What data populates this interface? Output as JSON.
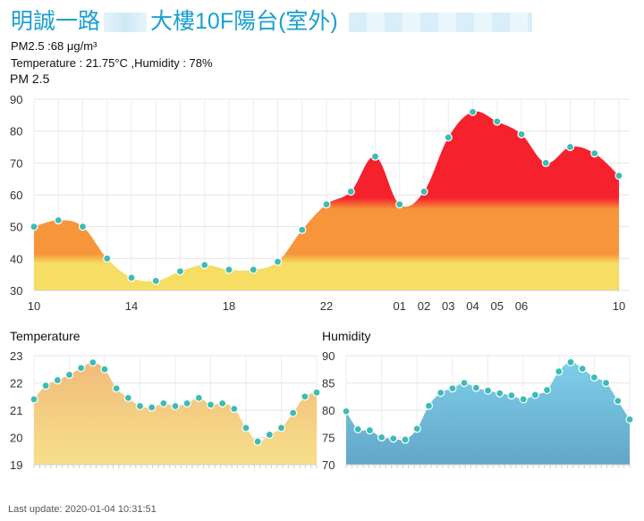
{
  "header": {
    "title_part1": "明誠一路",
    "title_part2": "大樓10F陽台(室外)"
  },
  "readouts": {
    "pm25_line": "PM2.5 :68 μg/m³",
    "temp_hum_line": "Temperature : 21.75°C ,Humidity : 78%"
  },
  "footer": {
    "last_update": "Last update: 2020-01-04 10:31:51"
  },
  "colors": {
    "pm_red": "#f5222d",
    "pm_orange": "#f7953a",
    "pm_yellow": "#f6dd63",
    "temp_top": "#f0b97a",
    "temp_bottom": "#f7e08a",
    "hum_top": "#7fd1ec",
    "hum_bottom": "#63a6c8",
    "marker": "#3dbcb5",
    "title": "#1aa0cf"
  },
  "chart_data": [
    {
      "type": "area",
      "title": "PM 2.5",
      "ylim": [
        30,
        90
      ],
      "yticks": [
        30,
        40,
        50,
        60,
        70,
        80,
        90
      ],
      "grid": true,
      "x_tick_labels": [
        "10",
        "14",
        "18",
        "22",
        "01",
        "02",
        "03",
        "04",
        "05",
        "06",
        "10"
      ],
      "x_tick_hours": [
        10,
        14,
        18,
        22,
        25,
        26,
        27,
        28,
        29,
        30,
        34
      ],
      "x_hours": [
        10,
        11,
        12,
        13,
        14,
        15,
        16,
        17,
        18,
        19,
        20,
        21,
        22,
        23,
        24,
        25,
        26,
        27,
        28,
        29,
        30,
        31,
        32,
        33,
        34
      ],
      "values": [
        50,
        52,
        50,
        40,
        34,
        33,
        36,
        38,
        36.5,
        36.5,
        39,
        49,
        57,
        61,
        72,
        57,
        61,
        78,
        86,
        83,
        79,
        70,
        75,
        73,
        66
      ],
      "bands": [
        [
          30,
          40
        ],
        [
          40,
          57
        ],
        [
          57,
          90
        ]
      ]
    },
    {
      "type": "area",
      "title": "Temperature",
      "ylim": [
        19,
        23
      ],
      "yticks": [
        19,
        20,
        21,
        22,
        23
      ],
      "grid": true,
      "values": [
        21.4,
        21.9,
        22.1,
        22.3,
        22.55,
        22.75,
        22.5,
        21.8,
        21.45,
        21.15,
        21.1,
        21.25,
        21.15,
        21.25,
        21.45,
        21.2,
        21.25,
        21.05,
        20.35,
        19.85,
        20.1,
        20.35,
        20.9,
        21.5,
        21.65
      ]
    },
    {
      "type": "area",
      "title": "Humidity",
      "ylim": [
        70,
        90
      ],
      "yticks": [
        70,
        75,
        80,
        85,
        90
      ],
      "grid": true,
      "values": [
        79.8,
        76.5,
        76.3,
        75,
        74.8,
        74.6,
        76.6,
        80.8,
        83.2,
        84,
        85,
        84.1,
        83.6,
        83.1,
        82.7,
        82,
        82.8,
        83.7,
        87.1,
        88.8,
        87.6,
        86,
        85,
        81.7,
        78.3
      ]
    }
  ]
}
